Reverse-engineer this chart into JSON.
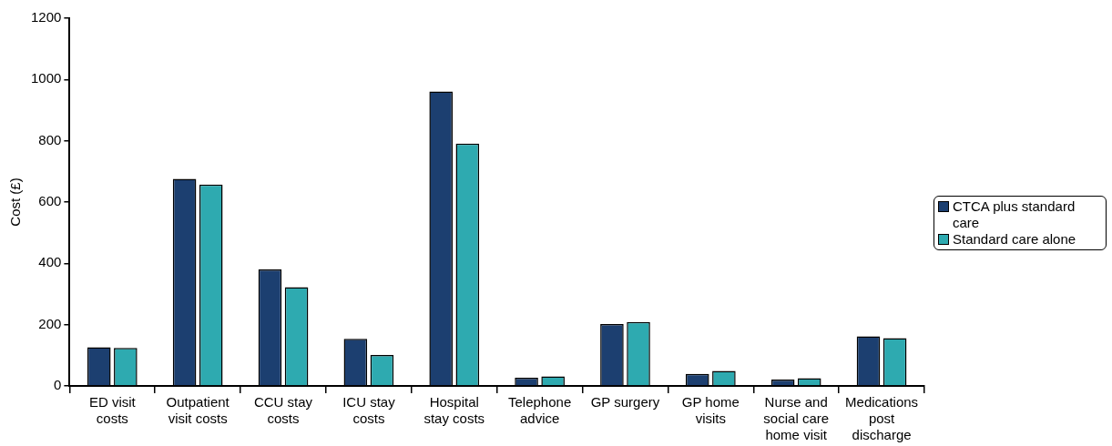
{
  "chart_data": {
    "type": "bar",
    "ylabel": "Cost (£)",
    "categories": [
      "ED visit costs",
      "Outpatient visit costs",
      "CCU stay costs",
      "ICU stay costs",
      "Hospital stay costs",
      "Telephone advice",
      "GP surgery",
      "GP home visits",
      "Nurse and social care home visit",
      "Medications post discharge"
    ],
    "series": [
      {
        "name": "CTCA plus standard care",
        "color": "#1c3f70",
        "values": [
          126,
          676,
          380,
          154,
          961,
          27,
          202,
          39,
          21,
          162
        ]
      },
      {
        "name": "Standard care alone",
        "color": "#2eaab0",
        "values": [
          124,
          657,
          322,
          101,
          791,
          31,
          209,
          49,
          25,
          156
        ]
      }
    ],
    "ylim": [
      0,
      1200
    ],
    "yticks": [
      0,
      200,
      400,
      600,
      800,
      1000,
      1200
    ],
    "grid": false,
    "legend": "right"
  }
}
